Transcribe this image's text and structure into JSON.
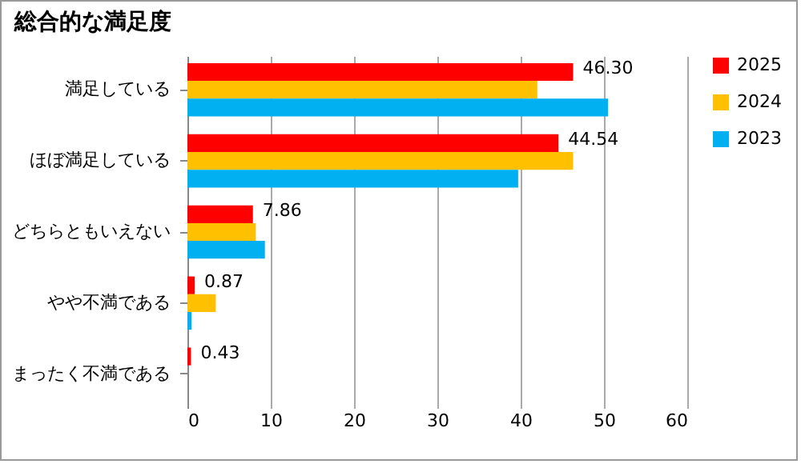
{
  "chart_data": {
    "type": "bar",
    "orientation": "horizontal",
    "title": "総合的な満足度",
    "categories": [
      "満足している",
      "ほぼ満足している",
      "どちらともいえない",
      "やや不満である",
      "まったく不満である"
    ],
    "series": [
      {
        "name": "2025",
        "color": "#ff0000",
        "values": [
          46.3,
          44.54,
          7.86,
          0.87,
          0.43
        ],
        "value_labels": [
          "46.30",
          "44.54",
          "7.86",
          "0.87",
          "0.43"
        ]
      },
      {
        "name": "2024",
        "color": "#ffc000",
        "values": [
          42.0,
          46.3,
          8.2,
          3.4,
          0
        ]
      },
      {
        "name": "2023",
        "color": "#00b0f0",
        "values": [
          50.5,
          39.7,
          9.3,
          0.5,
          0
        ]
      }
    ],
    "xlim": [
      0,
      60
    ],
    "xticks": [
      0,
      10,
      20,
      30,
      40,
      50,
      60
    ],
    "grid": "x",
    "legend": "right"
  }
}
